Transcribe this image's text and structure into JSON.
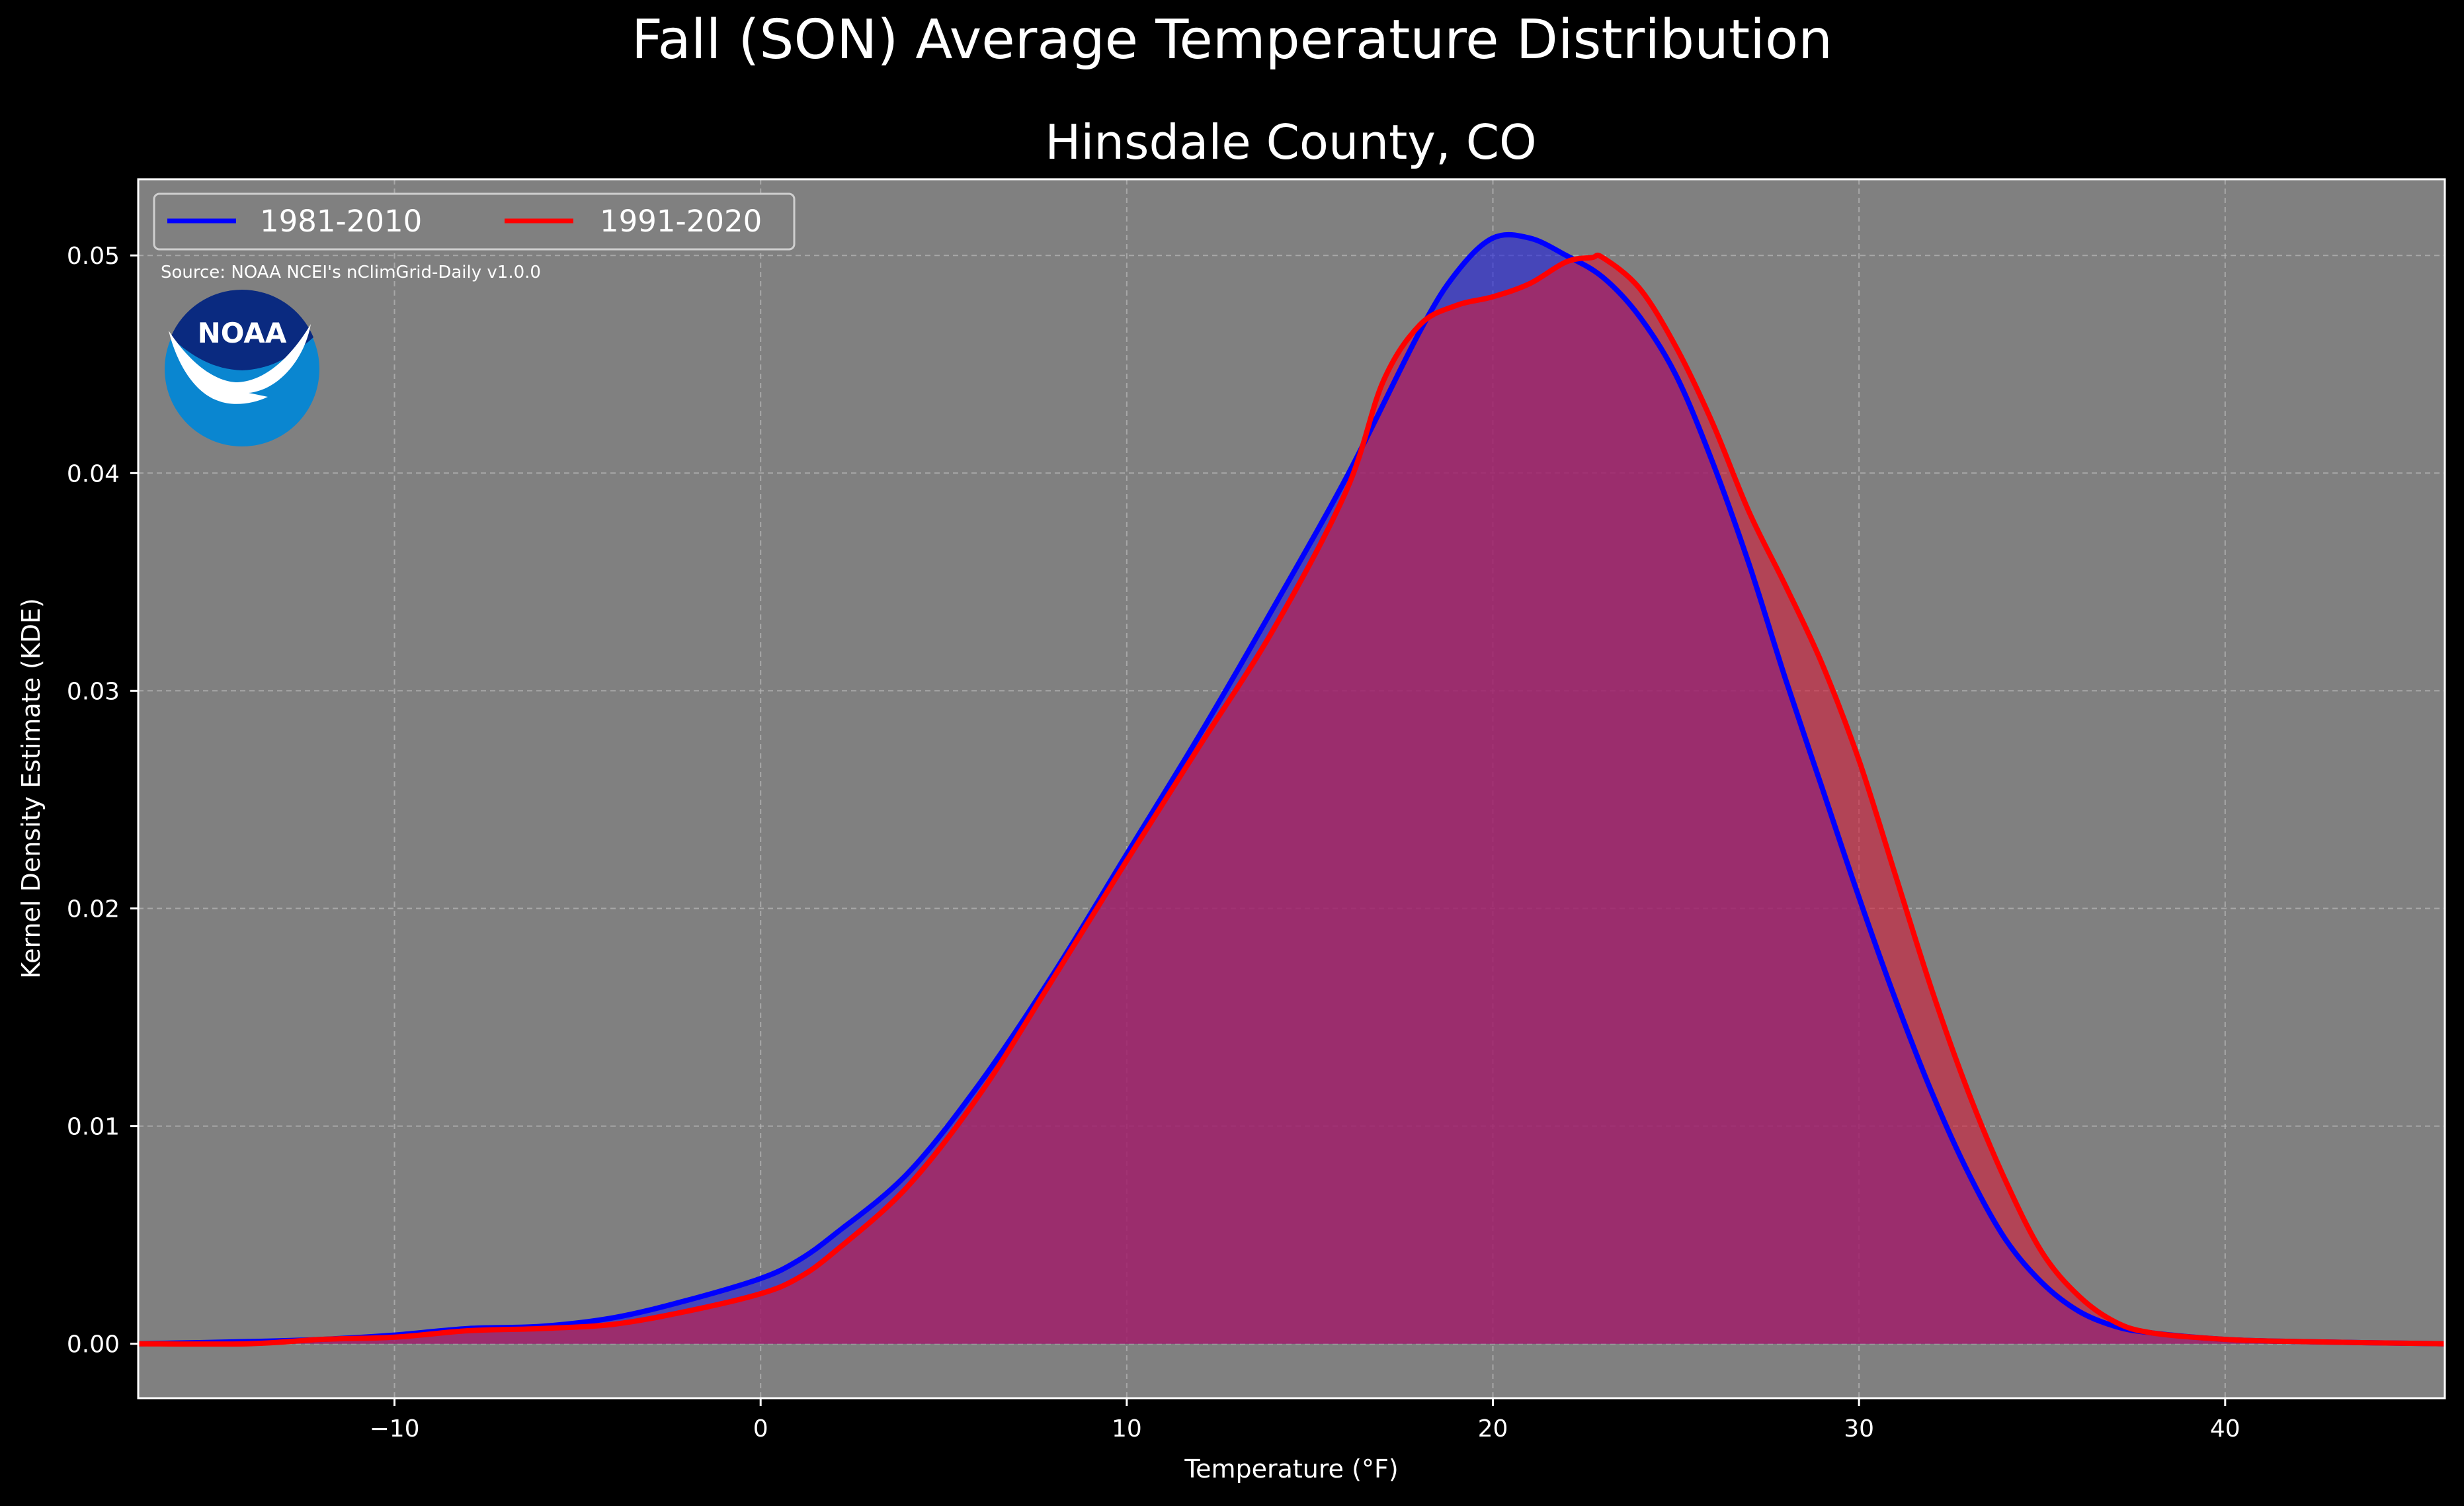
{
  "chart_data": {
    "type": "area",
    "title": "Fall (SON) Average Temperature Distribution",
    "subtitle": "Hinsdale County, CO",
    "xlabel": "Temperature (°F)",
    "ylabel": "Kernel Density Estimate (KDE)",
    "xlim": [
      -17,
      46
    ],
    "ylim": [
      -0.0025,
      0.0535
    ],
    "x_ticks": [
      -10,
      0,
      10,
      20,
      30,
      40
    ],
    "x_tick_labels": [
      "−10",
      "0",
      "10",
      "20",
      "30",
      "40"
    ],
    "y_ticks": [
      0.0,
      0.01,
      0.02,
      0.03,
      0.04,
      0.05
    ],
    "y_tick_labels": [
      "0.00",
      "0.01",
      "0.02",
      "0.03",
      "0.04",
      "0.05"
    ],
    "grid": true,
    "legend_position": "top-left",
    "annotation": "Source: NOAA NCEI's nClimGrid-Daily v1.0.0",
    "logo_text": "NOAA",
    "series": [
      {
        "name": "1981-2010",
        "color": "#0000ff",
        "fill_color": "#1f1fe0",
        "points": [
          [
            -17,
            0.0
          ],
          [
            -14,
            0.0001
          ],
          [
            -12,
            0.0002
          ],
          [
            -10,
            0.0004
          ],
          [
            -8,
            0.0007
          ],
          [
            -6,
            0.0008
          ],
          [
            -4,
            0.0012
          ],
          [
            -2,
            0.002
          ],
          [
            0,
            0.003
          ],
          [
            1,
            0.0038
          ],
          [
            2,
            0.005
          ],
          [
            4,
            0.0078
          ],
          [
            6,
            0.012
          ],
          [
            8,
            0.017
          ],
          [
            10,
            0.0225
          ],
          [
            12,
            0.028
          ],
          [
            14,
            0.0338
          ],
          [
            16,
            0.0398
          ],
          [
            18,
            0.0465
          ],
          [
            19,
            0.0492
          ],
          [
            20,
            0.0508
          ],
          [
            21,
            0.0508
          ],
          [
            22,
            0.05
          ],
          [
            23,
            0.049
          ],
          [
            24,
            0.0472
          ],
          [
            25,
            0.0445
          ],
          [
            26,
            0.0405
          ],
          [
            27,
            0.0358
          ],
          [
            28,
            0.0305
          ],
          [
            29,
            0.0255
          ],
          [
            30,
            0.0205
          ],
          [
            31,
            0.0158
          ],
          [
            32,
            0.0115
          ],
          [
            33,
            0.0078
          ],
          [
            34,
            0.0048
          ],
          [
            35,
            0.0028
          ],
          [
            36,
            0.0015
          ],
          [
            37,
            0.0008
          ],
          [
            38,
            0.0005
          ],
          [
            40,
            0.0002
          ],
          [
            42,
            0.0001
          ],
          [
            46,
            0.0
          ]
        ]
      },
      {
        "name": "1991-2020",
        "color": "#ff0000",
        "fill_color": "#d41c3a",
        "points": [
          [
            -17,
            0.0
          ],
          [
            -14,
            0.0
          ],
          [
            -12,
            0.0002
          ],
          [
            -10,
            0.0003
          ],
          [
            -8,
            0.0006
          ],
          [
            -6,
            0.0007
          ],
          [
            -4,
            0.0009
          ],
          [
            -2,
            0.0015
          ],
          [
            0,
            0.0023
          ],
          [
            1,
            0.003
          ],
          [
            2,
            0.0042
          ],
          [
            4,
            0.0072
          ],
          [
            6,
            0.0115
          ],
          [
            8,
            0.0168
          ],
          [
            10,
            0.0222
          ],
          [
            12,
            0.0275
          ],
          [
            14,
            0.0328
          ],
          [
            16,
            0.0392
          ],
          [
            17,
            0.0442
          ],
          [
            18,
            0.0468
          ],
          [
            19,
            0.0477
          ],
          [
            20,
            0.0481
          ],
          [
            21,
            0.0487
          ],
          [
            22,
            0.0497
          ],
          [
            22.7,
            0.0499
          ],
          [
            23,
            0.0499
          ],
          [
            24,
            0.0485
          ],
          [
            25,
            0.0458
          ],
          [
            26,
            0.0423
          ],
          [
            27,
            0.0382
          ],
          [
            28,
            0.0348
          ],
          [
            29,
            0.0312
          ],
          [
            30,
            0.0268
          ],
          [
            31,
            0.0215
          ],
          [
            32,
            0.0162
          ],
          [
            33,
            0.0115
          ],
          [
            34,
            0.0075
          ],
          [
            35,
            0.0042
          ],
          [
            36,
            0.0022
          ],
          [
            37,
            0.001
          ],
          [
            38,
            0.0005
          ],
          [
            40,
            0.0002
          ],
          [
            42,
            0.0001
          ],
          [
            46,
            0.0
          ]
        ]
      }
    ]
  }
}
